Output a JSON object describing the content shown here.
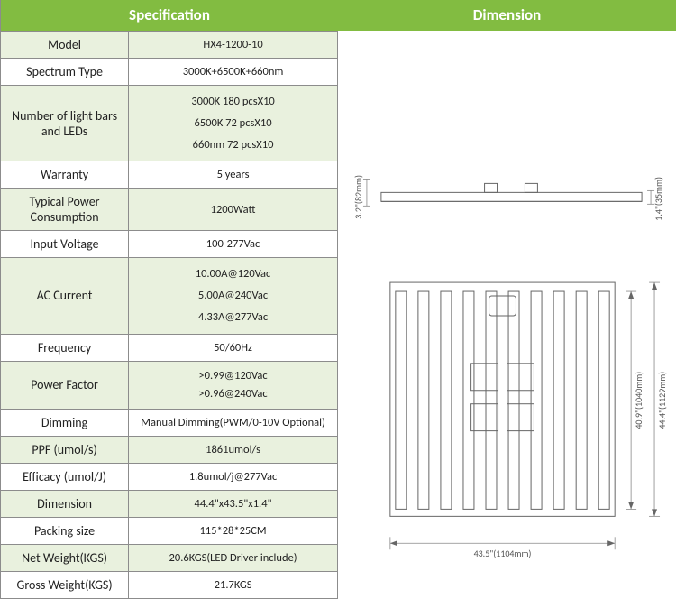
{
  "headers": {
    "spec": "Specification",
    "dim": "Dimension"
  },
  "rows": [
    {
      "label": "Model",
      "value": "HX4-1200-10",
      "bg": "even"
    },
    {
      "label": "Spectrum Type",
      "value": "3000K+6500K+660nm",
      "bg": "odd"
    },
    {
      "label": "Number of light bars and LEDs",
      "value": "3000K   180 pcsX10\n6500K    72 pcsX10\n660nm   72 pcsX10",
      "bg": "even",
      "multi": true
    },
    {
      "label": "Warranty",
      "value": "5 years",
      "bg": "odd"
    },
    {
      "label": "Typical Power Consumption",
      "value": "1200Watt",
      "bg": "even"
    },
    {
      "label": "Input Voltage",
      "value": "100-277Vac",
      "bg": "odd"
    },
    {
      "label": "AC Current",
      "value": "10.00A@120Vac\n5.00A@240Vac\n4.33A@277Vac",
      "bg": "even",
      "multi": true
    },
    {
      "label": "Frequency",
      "value": "50/60Hz",
      "bg": "odd"
    },
    {
      "label": "Power Factor",
      "value": ">0.99@120Vac\n>0.96@240Vac",
      "bg": "even",
      "multiSm": true
    },
    {
      "label": "Dimming",
      "value": "Manual Dimming(PWM/0-10V Optional)",
      "bg": "odd"
    },
    {
      "label": "PPF (umol/s)",
      "value": "1861umol/s",
      "bg": "even"
    },
    {
      "label": "Efficacy (umol/J)",
      "value": "1.8umol/j@277Vac",
      "bg": "odd"
    },
    {
      "label": "Dimension",
      "value": "44.4\"x43.5\"x1.4\"",
      "bg": "even"
    },
    {
      "label": "Packing size",
      "value": "115*28*25CM",
      "bg": "odd"
    },
    {
      "label": "Net Weight(KGS)",
      "value": "20.6KGS(LED Driver  include)",
      "bg": "even"
    },
    {
      "label": "Gross Weight(KGS)",
      "value": "21.7KGS",
      "bg": "odd"
    }
  ],
  "drawing": {
    "side_view": {
      "height_label": "3.2\"(82mm)",
      "depth_label": "1.4\"(35mm)"
    },
    "top_view": {
      "bars": 10,
      "width_label": "43.5\"(1104mm)",
      "inner_height_label": "40.9\"(1040mm)",
      "outer_height_label": "44.4\"(1129mm)"
    },
    "colors": {
      "line": "#666666",
      "text": "#555555"
    }
  }
}
